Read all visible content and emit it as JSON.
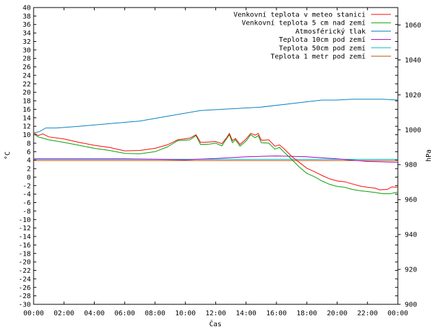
{
  "chart_data": {
    "type": "line",
    "xlabel": "Čas",
    "ylabel": "°C",
    "y2label": "hPa",
    "xticks": [
      "00:00",
      "02:00",
      "04:00",
      "06:00",
      "08:00",
      "10:00",
      "12:00",
      "14:00",
      "16:00",
      "18:00",
      "20:00",
      "22:00",
      "00:00"
    ],
    "xlim": [
      0,
      24
    ],
    "ylim": [
      -30,
      40
    ],
    "y2lim": [
      900,
      1070
    ],
    "yticks": [
      -30,
      -28,
      -26,
      -24,
      -22,
      -20,
      -18,
      -16,
      -14,
      -12,
      -10,
      -8,
      -6,
      -4,
      -2,
      0,
      2,
      4,
      6,
      8,
      10,
      12,
      14,
      16,
      18,
      20,
      22,
      24,
      26,
      28,
      30,
      32,
      34,
      36,
      38,
      40
    ],
    "y2ticks": [
      900,
      920,
      940,
      960,
      980,
      1000,
      1020,
      1040,
      1060
    ],
    "legend_position": "top-right",
    "grid": false,
    "series": [
      {
        "name": "Venkovní teplota v meteo stanici",
        "color": "#ff0000",
        "axis": "left",
        "points": [
          [
            0,
            10.5
          ],
          [
            0.3,
            9.8
          ],
          [
            0.6,
            10.2
          ],
          [
            1,
            9.5
          ],
          [
            2,
            9.0
          ],
          [
            3,
            8.2
          ],
          [
            4,
            7.5
          ],
          [
            5,
            7.0
          ],
          [
            6,
            6.2
          ],
          [
            7,
            6.3
          ],
          [
            8,
            6.8
          ],
          [
            8.8,
            7.6
          ],
          [
            9.5,
            8.8
          ],
          [
            10.3,
            9.2
          ],
          [
            10.7,
            10.0
          ],
          [
            11,
            8.2
          ],
          [
            11.6,
            8.3
          ],
          [
            12,
            8.4
          ],
          [
            12.4,
            7.9
          ],
          [
            12.7,
            9.2
          ],
          [
            12.9,
            10.3
          ],
          [
            13.1,
            8.6
          ],
          [
            13.3,
            9.1
          ],
          [
            13.6,
            7.7
          ],
          [
            14,
            9.0
          ],
          [
            14.3,
            10.3
          ],
          [
            14.6,
            9.9
          ],
          [
            14.8,
            10.3
          ],
          [
            15,
            8.7
          ],
          [
            15.5,
            8.8
          ],
          [
            15.9,
            7.3
          ],
          [
            16.2,
            7.6
          ],
          [
            16.5,
            6.7
          ],
          [
            17,
            4.9
          ],
          [
            17.5,
            3.5
          ],
          [
            18,
            2.1
          ],
          [
            18.5,
            1.3
          ],
          [
            19,
            0.4
          ],
          [
            19.5,
            -0.4
          ],
          [
            20,
            -0.9
          ],
          [
            20.5,
            -1.1
          ],
          [
            21,
            -1.6
          ],
          [
            21.5,
            -2.1
          ],
          [
            22,
            -2.4
          ],
          [
            22.5,
            -2.6
          ],
          [
            22.8,
            -3.0
          ],
          [
            23.3,
            -2.9
          ],
          [
            23.6,
            -2.3
          ],
          [
            24,
            -2.4
          ]
        ]
      },
      {
        "name": "Venkovní teplota 5 cm nad zemí",
        "color": "#00a000",
        "axis": "left",
        "points": [
          [
            0,
            10.2
          ],
          [
            0.3,
            9.5
          ],
          [
            0.6,
            9.2
          ],
          [
            1,
            8.8
          ],
          [
            2,
            8.2
          ],
          [
            3,
            7.5
          ],
          [
            4,
            6.8
          ],
          [
            5,
            6.3
          ],
          [
            6,
            5.6
          ],
          [
            7,
            5.5
          ],
          [
            8,
            6.0
          ],
          [
            8.8,
            7.1
          ],
          [
            9.5,
            8.6
          ],
          [
            10.3,
            8.8
          ],
          [
            10.7,
            9.8
          ],
          [
            11,
            7.7
          ],
          [
            11.6,
            7.8
          ],
          [
            12,
            8.0
          ],
          [
            12.4,
            7.4
          ],
          [
            12.7,
            9.0
          ],
          [
            12.9,
            10.0
          ],
          [
            13.1,
            8.1
          ],
          [
            13.3,
            8.8
          ],
          [
            13.6,
            7.3
          ],
          [
            14,
            8.5
          ],
          [
            14.3,
            10.0
          ],
          [
            14.6,
            9.3
          ],
          [
            14.8,
            9.8
          ],
          [
            15,
            8.1
          ],
          [
            15.5,
            8.0
          ],
          [
            15.9,
            6.6
          ],
          [
            16.2,
            7.0
          ],
          [
            16.5,
            5.9
          ],
          [
            17,
            4.2
          ],
          [
            17.5,
            2.4
          ],
          [
            18,
            0.9
          ],
          [
            18.5,
            0.1
          ],
          [
            19,
            -0.9
          ],
          [
            19.5,
            -1.7
          ],
          [
            20,
            -2.2
          ],
          [
            20.5,
            -2.4
          ],
          [
            21,
            -2.9
          ],
          [
            21.5,
            -3.2
          ],
          [
            22,
            -3.4
          ],
          [
            22.5,
            -3.6
          ],
          [
            23,
            -3.9
          ],
          [
            23.5,
            -3.9
          ],
          [
            24,
            -3.5
          ]
        ]
      },
      {
        "name": "Atmosférický tlak",
        "color": "#0080c0",
        "axis": "right",
        "points": [
          [
            0,
            998
          ],
          [
            0.4,
            999
          ],
          [
            0.8,
            1001
          ],
          [
            1.5,
            1001
          ],
          [
            3,
            1002
          ],
          [
            5,
            1003.5
          ],
          [
            7,
            1005
          ],
          [
            9,
            1008
          ],
          [
            11,
            1011
          ],
          [
            13,
            1012
          ],
          [
            15,
            1013
          ],
          [
            17,
            1015
          ],
          [
            18,
            1016
          ],
          [
            19,
            1017
          ],
          [
            20,
            1017
          ],
          [
            21,
            1017.5
          ],
          [
            22,
            1017.5
          ],
          [
            23,
            1017.5
          ],
          [
            24,
            1017
          ]
        ]
      },
      {
        "name": "Teplota 10cm pod zemí",
        "color": "#a000c0",
        "axis": "left",
        "points": [
          [
            0,
            4.3
          ],
          [
            2,
            4.3
          ],
          [
            4,
            4.3
          ],
          [
            6,
            4.3
          ],
          [
            8,
            4.2
          ],
          [
            10,
            4.1
          ],
          [
            12,
            4.4
          ],
          [
            14,
            4.8
          ],
          [
            16,
            5.0
          ],
          [
            18,
            4.8
          ],
          [
            20,
            4.3
          ],
          [
            22,
            3.7
          ],
          [
            24,
            3.5
          ]
        ]
      },
      {
        "name": "Teplota 50cm pod zemí",
        "color": "#00c0c0",
        "axis": "left",
        "points": [
          [
            0,
            4.2
          ],
          [
            4,
            4.2
          ],
          [
            8,
            4.2
          ],
          [
            12,
            4.2
          ],
          [
            16,
            4.2
          ],
          [
            20,
            4.2
          ],
          [
            24,
            4.2
          ]
        ]
      },
      {
        "name": "Teplota 1 metr pod zemí",
        "color": "#b05000",
        "axis": "left",
        "points": [
          [
            0,
            3.9
          ],
          [
            4,
            3.9
          ],
          [
            8,
            3.9
          ],
          [
            12,
            3.9
          ],
          [
            16,
            3.9
          ],
          [
            20,
            3.9
          ],
          [
            24,
            3.9
          ]
        ]
      }
    ]
  }
}
